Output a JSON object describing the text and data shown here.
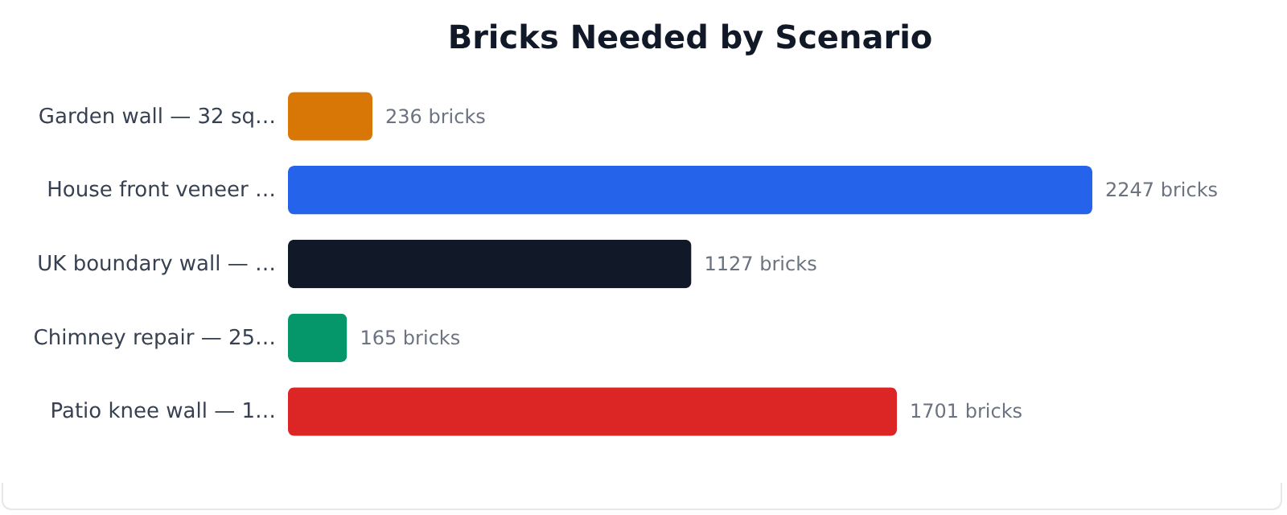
{
  "chart_data": {
    "type": "bar",
    "orientation": "horizontal",
    "title": "Bricks Needed by Scenario",
    "categories": [
      "Garden wall — 32 sq…",
      "House front veneer …",
      "UK boundary wall — …",
      "Chimney repair — 25…",
      "Patio knee wall — 1…"
    ],
    "values": [
      236,
      2247,
      1127,
      165,
      1701
    ],
    "colors": [
      "#d97706",
      "#2563eb",
      "#111827",
      "#059669",
      "#dc2626"
    ],
    "value_labels": [
      "236 bricks",
      "2247 bricks",
      "1127 bricks",
      "165 bricks",
      "1701 bricks"
    ]
  }
}
